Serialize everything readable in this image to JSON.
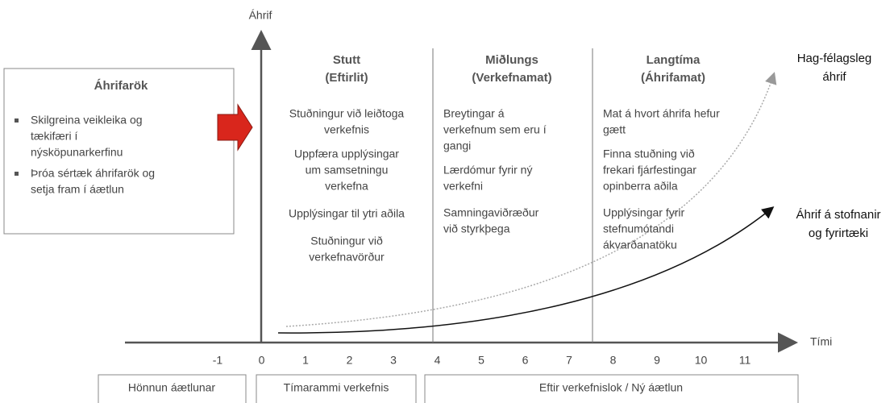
{
  "y_axis_label": "Áhrif",
  "x_axis_label": "Tími",
  "x_ticks": [
    "-1",
    "0",
    "1",
    "2",
    "3",
    "4",
    "5",
    "6",
    "7",
    "8",
    "9",
    "10",
    "11"
  ],
  "left_box": {
    "title": "Áhrifarök",
    "bullets": [
      [
        "Skilgreina veikleika og",
        "tækifæri í",
        "nýsköpunarkerfinu"
      ],
      [
        "Þróa sértæk áhrifarök og",
        "setja fram í áætlun"
      ]
    ]
  },
  "columns": [
    {
      "header": [
        "Stutt",
        "(Eftirlit)"
      ],
      "items": [
        [
          "Stuðningur við leiðtoga",
          "verkefnis"
        ],
        [
          "Uppfæra upplýsingar",
          "um samsetningu",
          "verkefna"
        ],
        [
          "Upplýsingar til ytri aðila"
        ],
        [
          "Stuðningur við",
          "verkefnavörður"
        ]
      ]
    },
    {
      "header": [
        "Miðlungs",
        "(Verkefnamat)"
      ],
      "items": [
        [
          "Breytingar á",
          "verkefnum sem eru í",
          "gangi"
        ],
        [
          "Lærdómur fyrir ný",
          "verkefni"
        ],
        [
          "Samningaviðræður",
          "við styrkþega"
        ]
      ]
    },
    {
      "header": [
        "Langtíma",
        "(Áhrifamat)"
      ],
      "items": [
        [
          "Mat á hvort áhrifa hefur",
          "gætt"
        ],
        [
          "Finna stuðning við",
          "frekari fjárfestingar",
          "opinberra aðila"
        ],
        [
          "Upplýsingar fyrir",
          "stefnumótandi",
          "ákvarðanatöku"
        ]
      ]
    }
  ],
  "outcomes": [
    [
      "Hag-félagsleg",
      "áhrif"
    ],
    [
      "Áhrif á stofnanir",
      "og fyrirtæki"
    ]
  ],
  "phases": [
    "Hönnun áætlunar",
    "Tímarammi verkefnis",
    "Eftir verkefnislok / Ný áætlun"
  ]
}
